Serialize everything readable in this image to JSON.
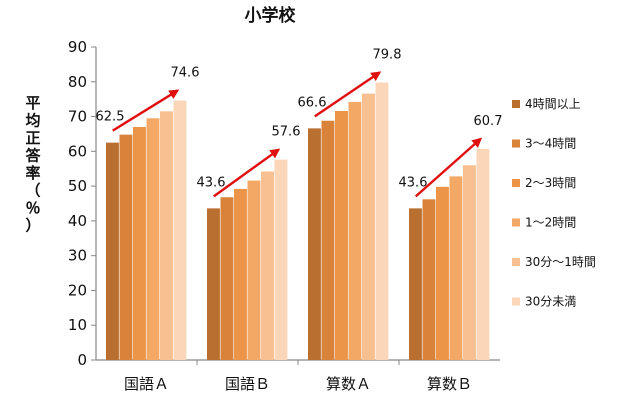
{
  "chart_data": {
    "type": "bar",
    "title": "小学校",
    "ylabel": "平均正答率（％）",
    "xlabel": "",
    "ylim": [
      0,
      90
    ],
    "yticks": [
      0,
      10,
      20,
      30,
      40,
      50,
      60,
      70,
      80,
      90
    ],
    "grid": false,
    "legend_position": "right",
    "categories": [
      "国語Ａ",
      "国語Ｂ",
      "算数Ａ",
      "算数Ｂ"
    ],
    "series": [
      {
        "name": "4時間以上",
        "color": "#b96f2f",
        "values": [
          62.5,
          43.6,
          66.6,
          43.6
        ]
      },
      {
        "name": "3～4時間",
        "color": "#d8823a",
        "values": [
          64.8,
          46.8,
          68.8,
          46.2
        ]
      },
      {
        "name": "2～3時間",
        "color": "#ec9447",
        "values": [
          67.0,
          49.2,
          71.6,
          49.8
        ]
      },
      {
        "name": "1～2時間",
        "color": "#f4a866",
        "values": [
          69.5,
          51.6,
          74.2,
          52.8
        ]
      },
      {
        "name": "30分～1時間",
        "color": "#f8c090",
        "values": [
          71.5,
          54.2,
          76.6,
          56.0
        ]
      },
      {
        "name": "30分未満",
        "color": "#fbd6b8",
        "values": [
          74.6,
          57.6,
          79.8,
          60.7
        ]
      }
    ],
    "data_labels": [
      {
        "category_index": 0,
        "start": "62.5",
        "end": "74.6"
      },
      {
        "category_index": 1,
        "start": "43.6",
        "end": "57.6"
      },
      {
        "category_index": 2,
        "start": "66.6",
        "end": "79.8"
      },
      {
        "category_index": 3,
        "start": "43.6",
        "end": "60.7"
      }
    ],
    "arrow_color": "#e01010"
  }
}
